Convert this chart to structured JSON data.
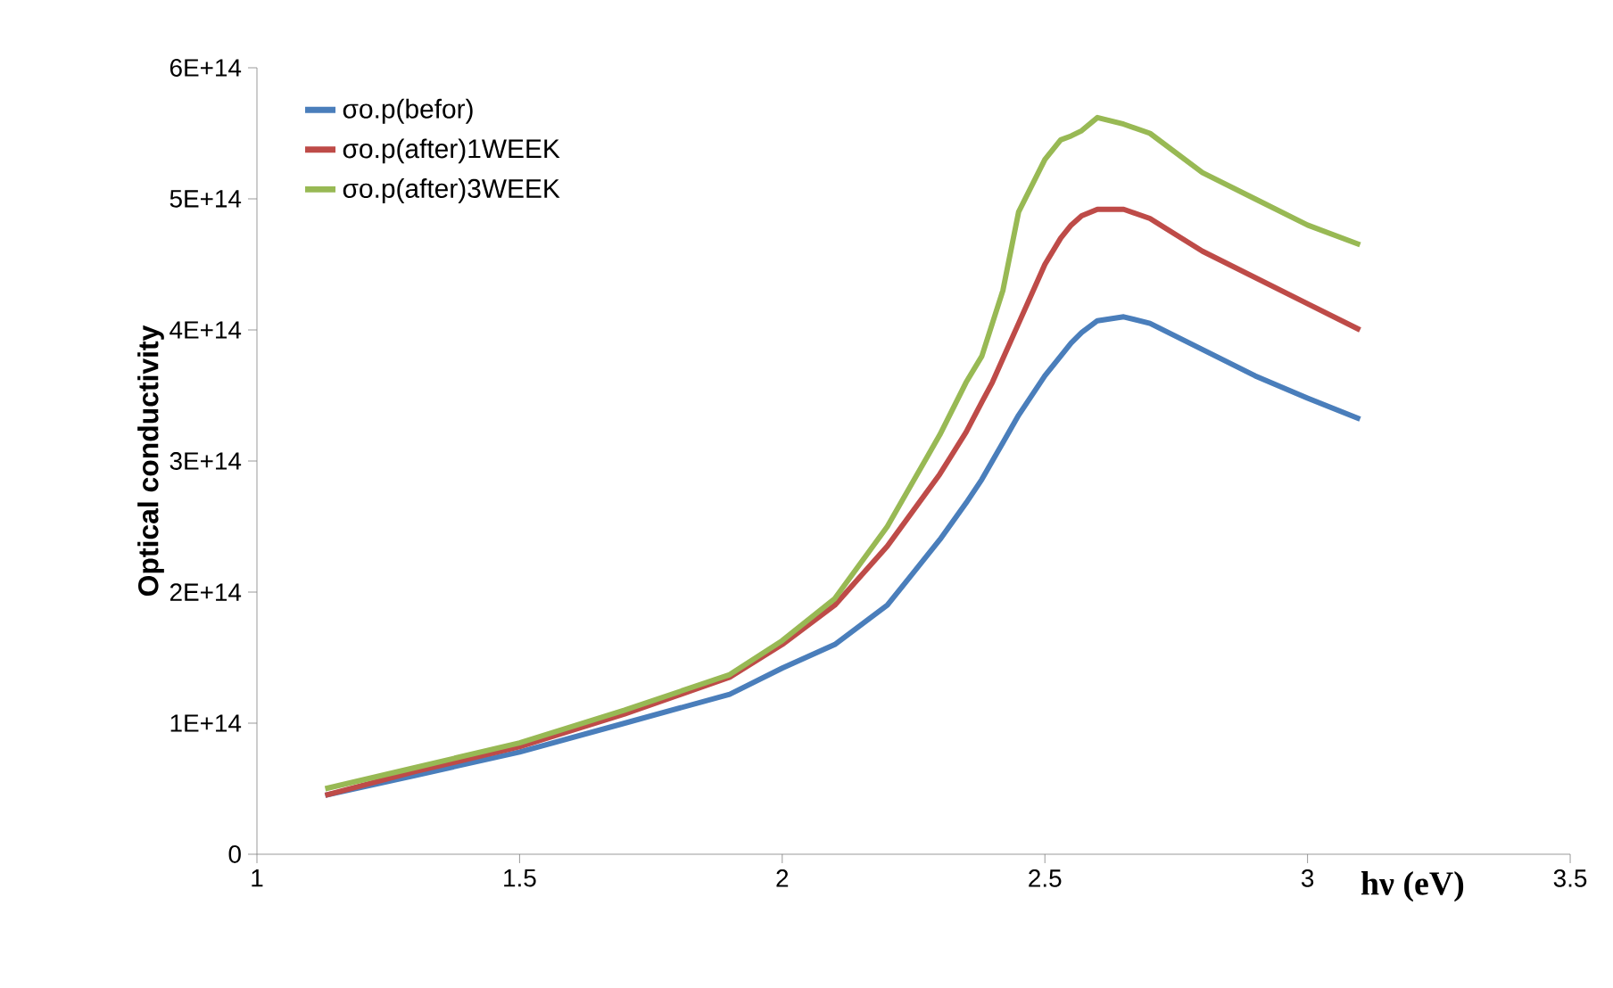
{
  "chart_data": {
    "type": "line",
    "xlabel": "hν (eV)",
    "ylabel": "Optical conductivity",
    "x": [
      1.13,
      1.3,
      1.5,
      1.7,
      1.9,
      2.0,
      2.1,
      2.2,
      2.3,
      2.35,
      2.38,
      2.4,
      2.42,
      2.45,
      2.5,
      2.53,
      2.55,
      2.57,
      2.6,
      2.65,
      2.7,
      2.8,
      2.9,
      3.0,
      3.1
    ],
    "series": [
      {
        "name": "σo.p(befor)",
        "color": "#4a7ebb",
        "values": [
          45000000000000.0,
          60000000000000.0,
          78000000000000.0,
          100000000000000.0,
          122000000000000.0,
          142000000000000.0,
          160000000000000.0,
          190000000000000.0,
          240000000000000.0,
          268000000000000.0,
          286000000000000.0,
          300000000000000.0,
          314000000000000.0,
          335000000000000.0,
          365000000000000.0,
          380000000000000.0,
          390000000000000.0,
          398000000000000.0,
          407000000000000.0,
          410000000000000.0,
          405000000000000.0,
          385000000000000.0,
          365000000000000.0,
          348000000000000.0,
          332000000000000.0
        ]
      },
      {
        "name": "σo.p(after)1WEEK",
        "color": "#be4b48",
        "values": [
          45000000000000.0,
          63000000000000.0,
          82000000000000.0,
          107000000000000.0,
          135000000000000.0,
          160000000000000.0,
          190000000000000.0,
          235000000000000.0,
          290000000000000.0,
          322000000000000.0,
          345000000000000.0,
          360000000000000.0,
          378000000000000.0,
          405000000000000.0,
          450000000000000.0,
          470000000000000.0,
          480000000000000.0,
          487000000000000.0,
          492000000000000.0,
          492000000000000.0,
          485000000000000.0,
          460000000000000.0,
          440000000000000.0,
          420000000000000.0,
          400000000000000.0
        ]
      },
      {
        "name": "σo.p(after)3WEEK",
        "color": "#98b954",
        "values": [
          50000000000000.0,
          66000000000000.0,
          85000000000000.0,
          110000000000000.0,
          137000000000000.0,
          163000000000000.0,
          195000000000000.0,
          250000000000000.0,
          320000000000000.0,
          360000000000000.0,
          380000000000000.0,
          405000000000000.0,
          430000000000000.0,
          490000000000000.0,
          530000000000000.0,
          545000000000000.0,
          548000000000000.0,
          552000000000000.0,
          562000000000000.0,
          557000000000000.0,
          550000000000000.0,
          520000000000000.0,
          500000000000000.0,
          480000000000000.0,
          465000000000000.0
        ]
      }
    ],
    "xlim": [
      1,
      3.5
    ],
    "xticks": [
      1,
      1.5,
      2,
      2.5,
      3,
      3.5
    ],
    "ylim": [
      0,
      600000000000000.0
    ],
    "yticks": [
      0,
      {
        "value": 100000000000000.0,
        "label": "1E+14"
      },
      {
        "value": 200000000000000.0,
        "label": "2E+14"
      },
      {
        "value": 300000000000000.0,
        "label": "3E+14"
      },
      {
        "value": 400000000000000.0,
        "label": "4E+14"
      },
      {
        "value": 500000000000000.0,
        "label": "5E+14"
      },
      {
        "value": 600000000000000.0,
        "label": "6E+14"
      }
    ],
    "grid": false,
    "legend": "top left",
    "marker": "none",
    "line_style": "solid"
  }
}
